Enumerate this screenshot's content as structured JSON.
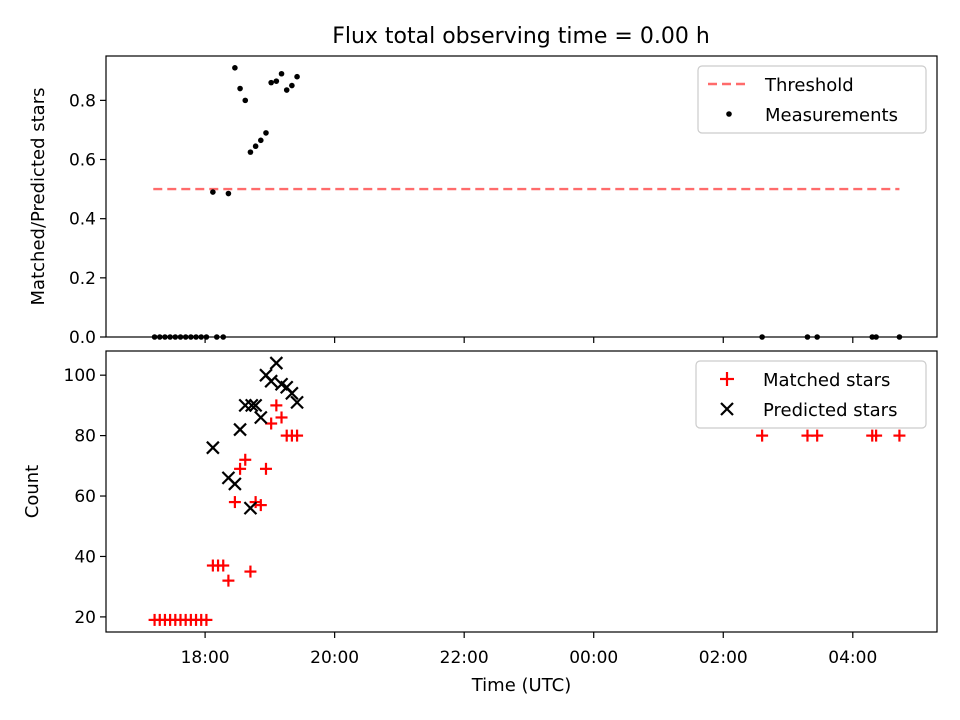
{
  "figure": {
    "title": "Flux total observing time = 0.00 h"
  },
  "colors": {
    "measurement": "#000000",
    "threshold": "#ff6b6b",
    "matched": "#ff0000",
    "predicted": "#000000"
  },
  "chart_data": [
    {
      "type": "scatter",
      "title": "Flux total observing time = 0.00 h",
      "xlabel": "",
      "ylabel": "Matched/Predicted stars",
      "xlim": [
        16.47,
        29.3
      ],
      "ylim": [
        0,
        0.95
      ],
      "yticks": [
        0.0,
        0.2,
        0.4,
        0.6,
        0.8
      ],
      "ytick_labels": [
        "0.0",
        "0.2",
        "0.4",
        "0.6",
        "0.8"
      ],
      "legend_position": "top-right",
      "legend": [
        "Threshold",
        "Measurements"
      ],
      "threshold": {
        "name": "Threshold",
        "x": [
          17.2,
          28.72
        ],
        "y": 0.5
      },
      "series": [
        {
          "name": "Measurements",
          "points": [
            [
              17.22,
              0
            ],
            [
              17.3,
              0
            ],
            [
              17.38,
              0
            ],
            [
              17.46,
              0
            ],
            [
              17.54,
              0
            ],
            [
              17.62,
              0
            ],
            [
              17.7,
              0
            ],
            [
              17.78,
              0
            ],
            [
              17.86,
              0
            ],
            [
              17.94,
              0
            ],
            [
              18.02,
              0
            ],
            [
              18.18,
              0
            ],
            [
              18.28,
              0
            ],
            [
              18.12,
              0.49
            ],
            [
              18.36,
              0.485
            ],
            [
              18.46,
              0.91
            ],
            [
              18.54,
              0.84
            ],
            [
              18.62,
              0.8
            ],
            [
              18.7,
              0.625
            ],
            [
              18.78,
              0.645
            ],
            [
              18.86,
              0.665
            ],
            [
              18.94,
              0.69
            ],
            [
              19.02,
              0.86
            ],
            [
              19.1,
              0.865
            ],
            [
              19.18,
              0.89
            ],
            [
              19.26,
              0.835
            ],
            [
              19.34,
              0.85
            ],
            [
              19.42,
              0.88
            ],
            [
              26.6,
              0
            ],
            [
              27.3,
              0
            ],
            [
              27.45,
              0
            ],
            [
              28.3,
              0
            ],
            [
              28.36,
              0
            ],
            [
              28.72,
              0
            ]
          ]
        }
      ]
    },
    {
      "type": "scatter",
      "title": "",
      "xlabel": "Time (UTC)",
      "ylabel": "Count",
      "xlim": [
        16.47,
        29.3
      ],
      "ylim": [
        15,
        108
      ],
      "yticks": [
        20,
        40,
        60,
        80,
        100
      ],
      "ytick_labels": [
        "20",
        "40",
        "60",
        "80",
        "100"
      ],
      "xticks": [
        18,
        20,
        22,
        24,
        26,
        28
      ],
      "xtick_labels": [
        "18:00",
        "20:00",
        "22:00",
        "00:00",
        "02:00",
        "04:00"
      ],
      "legend_position": "top-right",
      "legend": [
        "Matched stars",
        "Predicted stars"
      ],
      "series": [
        {
          "name": "Matched stars",
          "points": [
            [
              17.22,
              19
            ],
            [
              17.3,
              19
            ],
            [
              17.38,
              19
            ],
            [
              17.46,
              19
            ],
            [
              17.54,
              19
            ],
            [
              17.62,
              19
            ],
            [
              17.7,
              19
            ],
            [
              17.78,
              19
            ],
            [
              17.86,
              19
            ],
            [
              17.94,
              19
            ],
            [
              18.02,
              19
            ],
            [
              18.12,
              37
            ],
            [
              18.2,
              37
            ],
            [
              18.28,
              37
            ],
            [
              18.36,
              32
            ],
            [
              18.46,
              58
            ],
            [
              18.54,
              69
            ],
            [
              18.62,
              72
            ],
            [
              18.7,
              35
            ],
            [
              18.78,
              58
            ],
            [
              18.86,
              57
            ],
            [
              18.94,
              69
            ],
            [
              19.02,
              84
            ],
            [
              19.1,
              90
            ],
            [
              19.18,
              86
            ],
            [
              19.26,
              80
            ],
            [
              19.34,
              80
            ],
            [
              19.42,
              80
            ],
            [
              26.6,
              80
            ],
            [
              27.3,
              80
            ],
            [
              27.45,
              80
            ],
            [
              28.3,
              80
            ],
            [
              28.36,
              80
            ],
            [
              28.72,
              80
            ]
          ]
        },
        {
          "name": "Predicted stars",
          "points": [
            [
              18.12,
              76
            ],
            [
              18.36,
              66
            ],
            [
              18.46,
              64
            ],
            [
              18.54,
              82
            ],
            [
              18.62,
              90
            ],
            [
              18.7,
              56
            ],
            [
              18.72,
              90
            ],
            [
              18.86,
              86
            ],
            [
              18.78,
              90
            ],
            [
              18.94,
              100
            ],
            [
              19.02,
              98
            ],
            [
              19.1,
              104
            ],
            [
              19.18,
              97
            ],
            [
              19.26,
              96
            ],
            [
              19.34,
              94
            ],
            [
              19.42,
              91
            ]
          ]
        }
      ]
    }
  ]
}
